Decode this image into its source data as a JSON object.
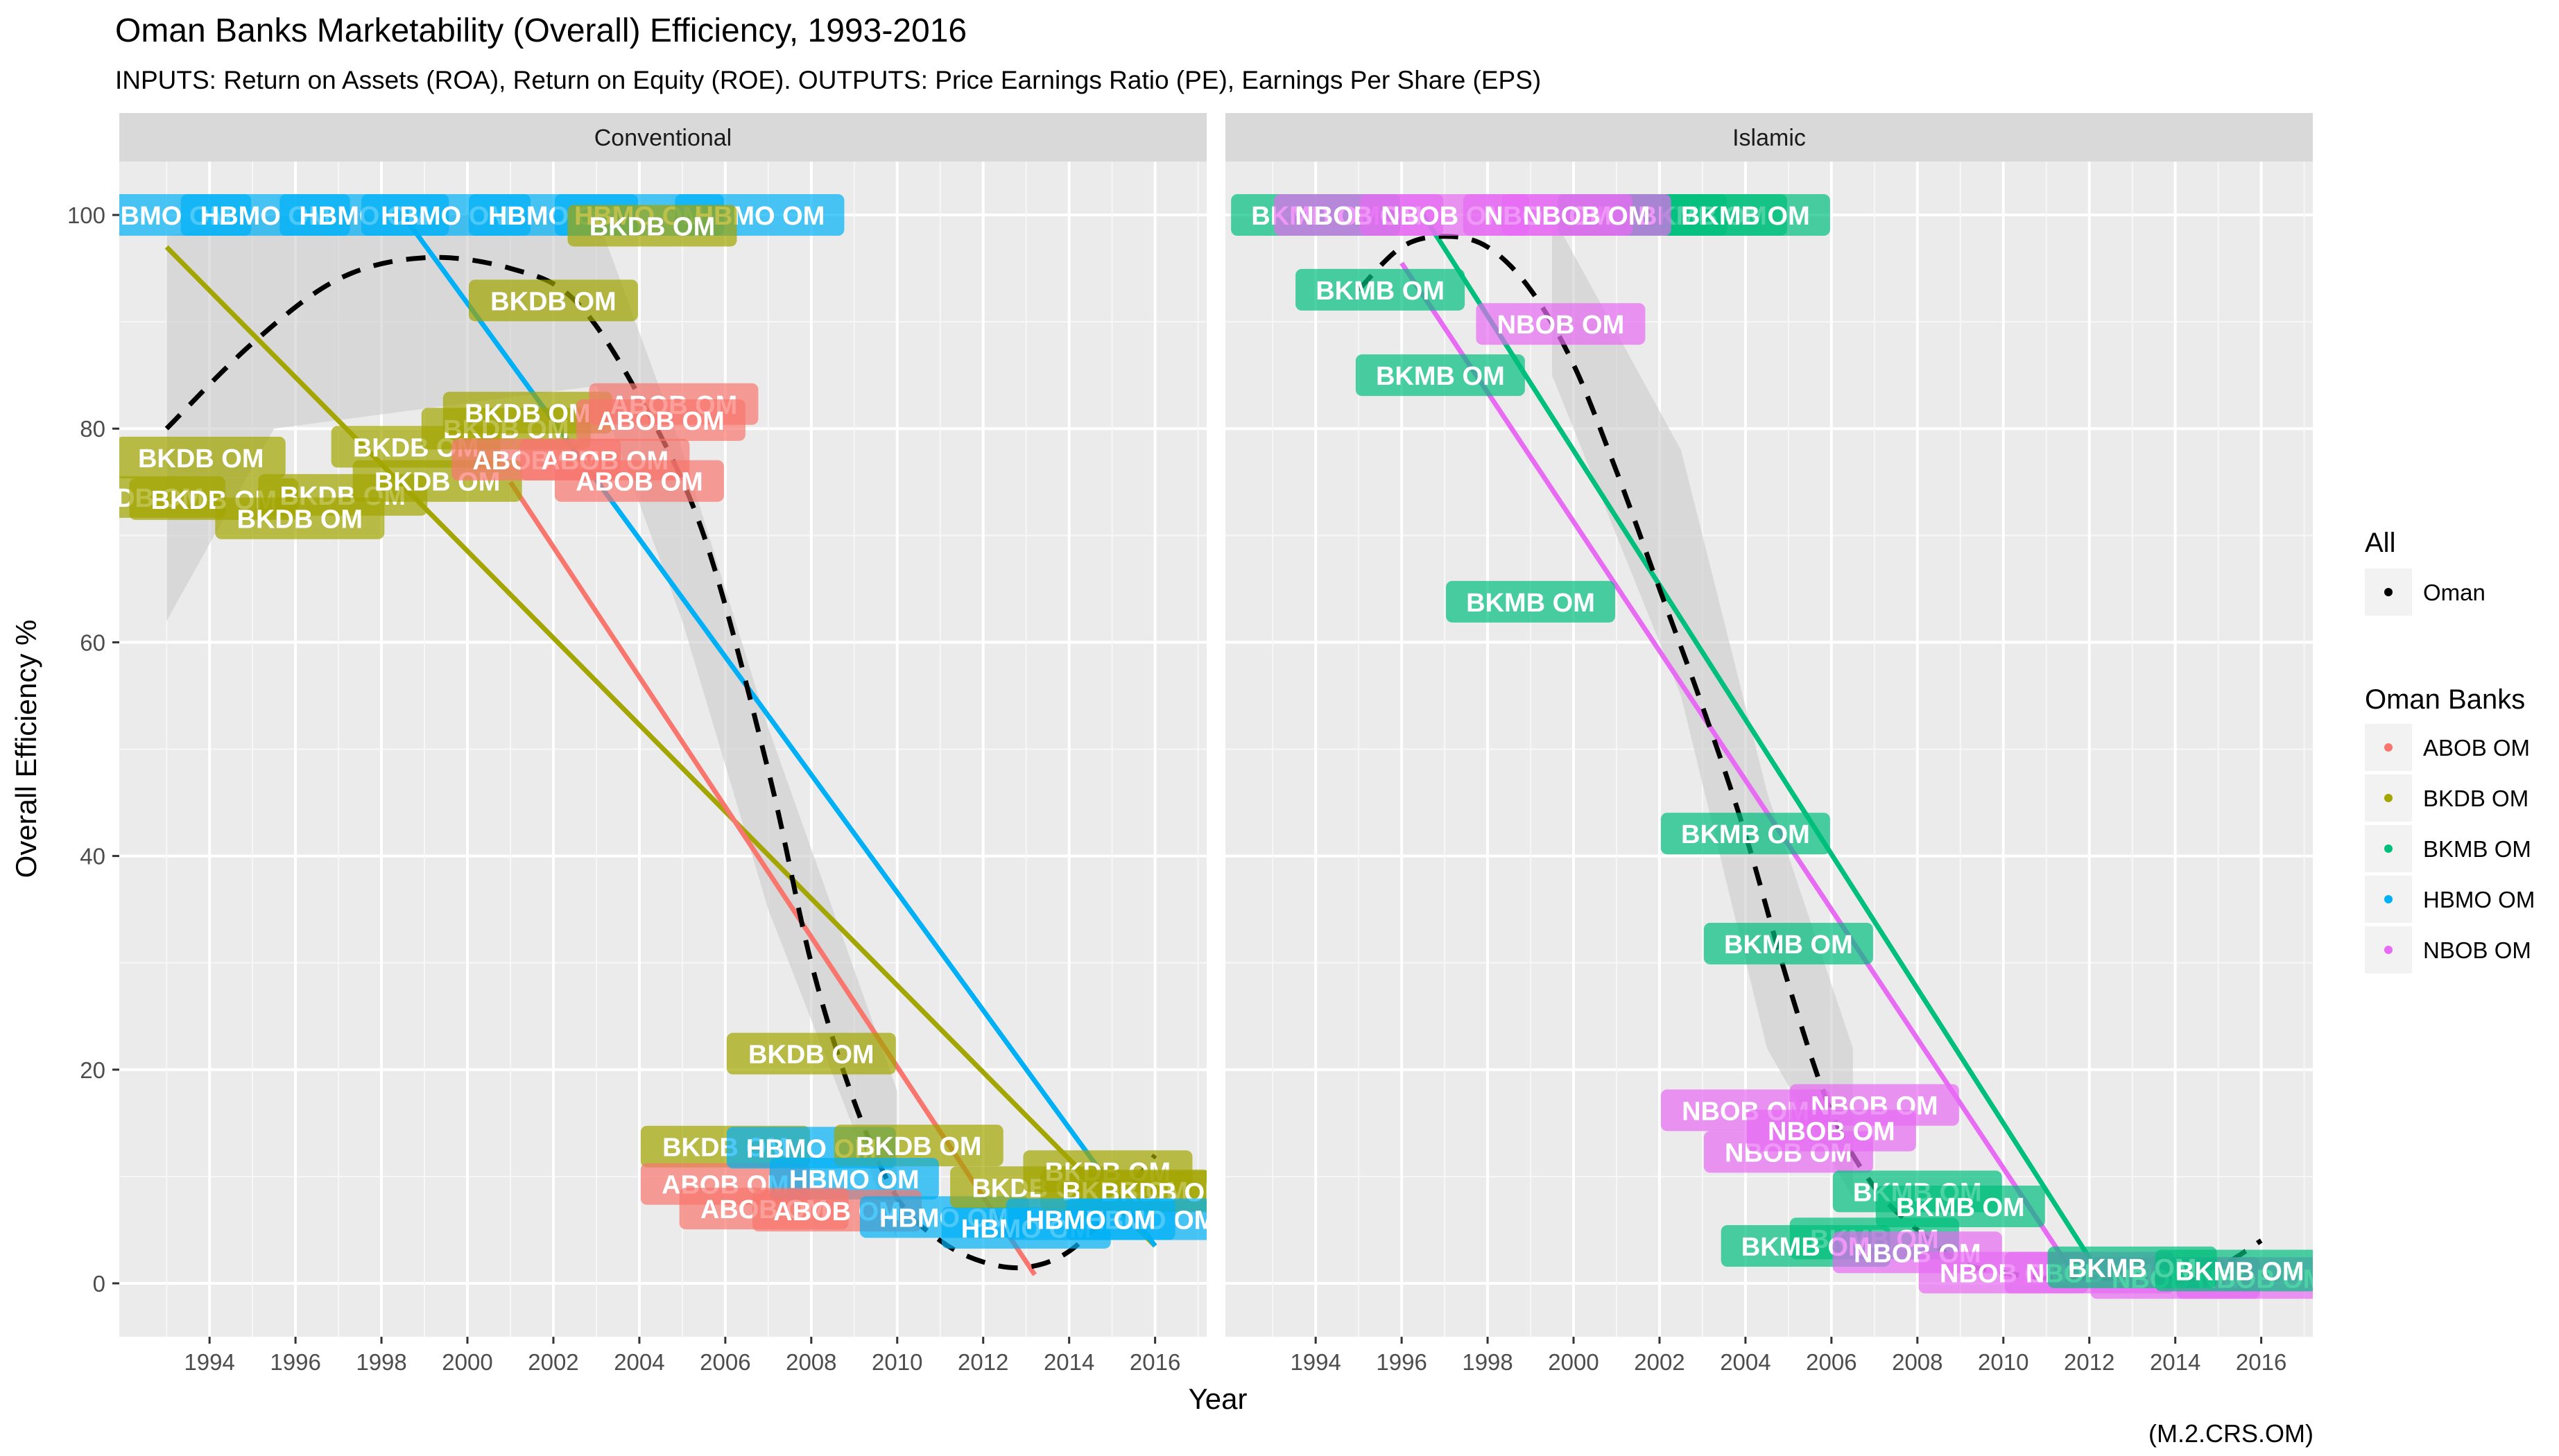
{
  "title": "Oman Banks Marketability (Overall) Efficiency, 1993-2016",
  "subtitle": "INPUTS: Return on Assets (ROA), Return on Equity (ROE). OUTPUTS: Price Earnings Ratio (PE), Earnings Per Share (EPS)",
  "caption": "(M.2.CRS.OM)",
  "colors": {
    "ABOB OM": "#F8766D",
    "BKDB OM": "#A3A500",
    "BKMB OM": "#00BF7D",
    "HBMO OM": "#00B0F6",
    "NBOB OM": "#E76BF3",
    "Oman": "#000000"
  },
  "chart_data": {
    "type": "scatter",
    "xlabel": "Year",
    "ylabel": "Overall Efficiency %",
    "xlim": [
      1991.9,
      2017.2
    ],
    "ylim": [
      -5,
      105
    ],
    "x_ticks": [
      1994,
      1996,
      1998,
      2000,
      2002,
      2004,
      2006,
      2008,
      2010,
      2012,
      2014,
      2016
    ],
    "y_ticks": [
      0,
      20,
      40,
      60,
      80,
      100
    ],
    "grid": true,
    "legend": {
      "position": "right",
      "groups": [
        {
          "title": "All",
          "entries": [
            "Oman"
          ]
        },
        {
          "title": "Oman Banks",
          "entries": [
            "ABOB OM",
            "BKDB OM",
            "BKMB OM",
            "HBMO OM",
            "NBOB OM"
          ]
        }
      ]
    },
    "panels": [
      {
        "name": "Conventional",
        "trend_lines": [
          {
            "series": "BKDB OM",
            "x": [
              1993,
              2016
            ],
            "y": [
              97,
              3.5
            ]
          },
          {
            "series": "ABOB OM",
            "x": [
              2001,
              2013.2
            ],
            "y": [
              75,
              0.8
            ]
          },
          {
            "series": "HBMO OM",
            "x": [
              1998.5,
              2016
            ],
            "y": [
              100,
              3.5
            ]
          }
        ],
        "oman_curve": {
          "x": [
            1993,
            1995,
            1997,
            1999,
            2001,
            2002.5,
            2004,
            2005.5,
            2007,
            2008,
            2009,
            2010,
            2011,
            2012,
            2013,
            2014,
            2015,
            2016
          ],
          "y": [
            80,
            88,
            94,
            96,
            95,
            92,
            83,
            70,
            48,
            30,
            17,
            8,
            4,
            2,
            1.5,
            3,
            7,
            12
          ],
          "ribbon": [
            {
              "x": 1993,
              "lo": 62,
              "hi": 98
            },
            {
              "x": 1995.5,
              "lo": 80,
              "hi": 100
            },
            {
              "x": 2003,
              "lo": 84,
              "hi": 100
            },
            {
              "x": 2005,
              "lo": 62,
              "hi": 78
            },
            {
              "x": 2007,
              "lo": 35,
              "hi": 52
            },
            {
              "x": 2010,
              "lo": 4,
              "hi": 18
            }
          ]
        },
        "points": [
          {
            "series": "HBMO OM",
            "x": 1993.0,
            "y": 100
          },
          {
            "series": "HBMO OM",
            "x": 1995.3,
            "y": 100
          },
          {
            "series": "HBMO OM",
            "x": 1997.6,
            "y": 100
          },
          {
            "series": "HBMO OM",
            "x": 1999.5,
            "y": 100
          },
          {
            "series": "HBMO OM",
            "x": 2002.0,
            "y": 100
          },
          {
            "series": "HBMO OM",
            "x": 2004.0,
            "y": 100
          },
          {
            "series": "HBMO OM",
            "x": 2006.8,
            "y": 100
          },
          {
            "series": "BKDB OM",
            "x": 2004.3,
            "y": 99
          },
          {
            "series": "BKDB OM",
            "x": 2002.0,
            "y": 92
          },
          {
            "series": "BKDB OM",
            "x": 1993.8,
            "y": 77.3
          },
          {
            "series": "BKDB OM",
            "x": 1992.4,
            "y": 73.6
          },
          {
            "series": "BKDB OM",
            "x": 1994.1,
            "y": 73.4
          },
          {
            "series": "BKDB OM",
            "x": 1997.1,
            "y": 73.8
          },
          {
            "series": "BKDB OM",
            "x": 1996.1,
            "y": 71.6
          },
          {
            "series": "BKDB OM",
            "x": 1998.8,
            "y": 78.3
          },
          {
            "series": "BKDB OM",
            "x": 1999.3,
            "y": 75.1
          },
          {
            "series": "BKDB OM",
            "x": 2000.9,
            "y": 80.0
          },
          {
            "series": "BKDB OM",
            "x": 2001.4,
            "y": 81.5
          },
          {
            "series": "ABOB OM",
            "x": 2001.6,
            "y": 77.1
          },
          {
            "series": "ABOB OM",
            "x": 2003.2,
            "y": 77.1
          },
          {
            "series": "ABOB OM",
            "x": 2004.0,
            "y": 75.1
          },
          {
            "series": "ABOB OM",
            "x": 2004.8,
            "y": 82.3
          },
          {
            "series": "ABOB OM",
            "x": 2004.5,
            "y": 80.8
          },
          {
            "series": "BKDB OM",
            "x": 2008.0,
            "y": 21.5
          },
          {
            "series": "BKDB OM",
            "x": 2006.0,
            "y": 12.8
          },
          {
            "series": "ABOB OM",
            "x": 2006.0,
            "y": 9.3
          },
          {
            "series": "HBMO OM",
            "x": 2008.0,
            "y": 12.7
          },
          {
            "series": "BKDB OM",
            "x": 2010.5,
            "y": 12.9
          },
          {
            "series": "HBMO OM",
            "x": 2009.0,
            "y": 9.8
          },
          {
            "series": "ABOB OM",
            "x": 2006.9,
            "y": 7.0
          },
          {
            "series": "ABOB OM",
            "x": 2008.6,
            "y": 6.8
          },
          {
            "series": "HBMO OM",
            "x": 2011.1,
            "y": 6.2
          },
          {
            "series": "HBMO OM",
            "x": 2013.0,
            "y": 5.2
          },
          {
            "series": "BKDB OM",
            "x": 2013.2,
            "y": 9.0
          },
          {
            "series": "BKDB OM",
            "x": 2014.9,
            "y": 10.5
          },
          {
            "series": "BKDB OM",
            "x": 2015.3,
            "y": 8.7
          },
          {
            "series": "BKDB OM",
            "x": 2016.2,
            "y": 8.6
          },
          {
            "series": "HBMO OM",
            "x": 2015.9,
            "y": 6.0
          },
          {
            "series": "HBMO OM",
            "x": 2014.5,
            "y": 6.0
          }
        ]
      },
      {
        "name": "Islamic",
        "trend_lines": [
          {
            "series": "BKMB OM",
            "x": 1996.5,
            "y": [
              100
            ],
            "x2": 2012.3,
            "y2": 0.5
          },
          {
            "series": "NBOB OM",
            "x": 1996,
            "y": [
              95.5
            ],
            "x2": 2011.7,
            "y2": 0.5
          }
        ],
        "oman_curve": {
          "x": [
            1995,
            1996,
            1997,
            1998,
            1999,
            2000,
            2001,
            2002,
            2003,
            2004,
            2005,
            2006,
            2007,
            2008,
            2009,
            2010,
            2011,
            2012,
            2013,
            2014,
            2015,
            2016
          ],
          "y": [
            93,
            97,
            98,
            97,
            93,
            86,
            76,
            65,
            54,
            42,
            28,
            16,
            9,
            5,
            2,
            1,
            0.5,
            0.5,
            0.5,
            0.5,
            1.5,
            4
          ],
          "ribbon": [
            {
              "x": 1999.5,
              "lo": 85,
              "hi": 100
            },
            {
              "x": 2002.5,
              "lo": 55,
              "hi": 78
            },
            {
              "x": 2004.5,
              "lo": 22,
              "hi": 46
            },
            {
              "x": 2006.5,
              "lo": 8,
              "hi": 22
            }
          ]
        },
        "points": [
          {
            "series": "BKMB OM",
            "x": 1994.0,
            "y": 100
          },
          {
            "series": "BKMB OM",
            "x": 2001.6,
            "y": 100
          },
          {
            "series": "BKMB OM",
            "x": 2003.0,
            "y": 100
          },
          {
            "series": "BKMB OM",
            "x": 2004.0,
            "y": 100
          },
          {
            "series": "NBOB OM",
            "x": 1995.0,
            "y": 100
          },
          {
            "series": "NBOB OM",
            "x": 1997.0,
            "y": 100
          },
          {
            "series": "NBOB OM",
            "x": 1999.4,
            "y": 100
          },
          {
            "series": "NBOB OM",
            "x": 2000.3,
            "y": 100
          },
          {
            "series": "BKMB OM",
            "x": 1995.5,
            "y": 93
          },
          {
            "series": "BKMB OM",
            "x": 1996.9,
            "y": 85
          },
          {
            "series": "NBOB OM",
            "x": 1999.7,
            "y": 89.8
          },
          {
            "series": "BKMB OM",
            "x": 1999.0,
            "y": 63.8
          },
          {
            "series": "BKMB OM",
            "x": 2004.0,
            "y": 42.1
          },
          {
            "series": "BKMB OM",
            "x": 2005.0,
            "y": 31.8
          },
          {
            "series": "NBOB OM",
            "x": 2004.0,
            "y": 16.2
          },
          {
            "series": "NBOB OM",
            "x": 2007.0,
            "y": 16.7
          },
          {
            "series": "NBOB OM",
            "x": 2005.0,
            "y": 12.3
          },
          {
            "series": "NBOB OM",
            "x": 2006.0,
            "y": 14.3
          },
          {
            "series": "BKMB OM",
            "x": 2008.0,
            "y": 8.6
          },
          {
            "series": "BKMB OM",
            "x": 2009.0,
            "y": 7.2
          },
          {
            "series": "BKMB OM",
            "x": 2007.0,
            "y": 4.2
          },
          {
            "series": "BKMB OM",
            "x": 2005.4,
            "y": 3.5
          },
          {
            "series": "NBOB OM",
            "x": 2008.0,
            "y": 2.9
          },
          {
            "series": "NBOB OM",
            "x": 2010.0,
            "y": 1.0
          },
          {
            "series": "NBOB OM",
            "x": 2012.0,
            "y": 1.0
          },
          {
            "series": "NBOB OM",
            "x": 2014.0,
            "y": 0.5
          },
          {
            "series": "NBOB OM",
            "x": 2016.0,
            "y": 0.5
          },
          {
            "series": "BKMB OM",
            "x": 2013.0,
            "y": 1.5
          },
          {
            "series": "BKMB OM",
            "x": 2015.5,
            "y": 1.2
          }
        ]
      }
    ]
  }
}
